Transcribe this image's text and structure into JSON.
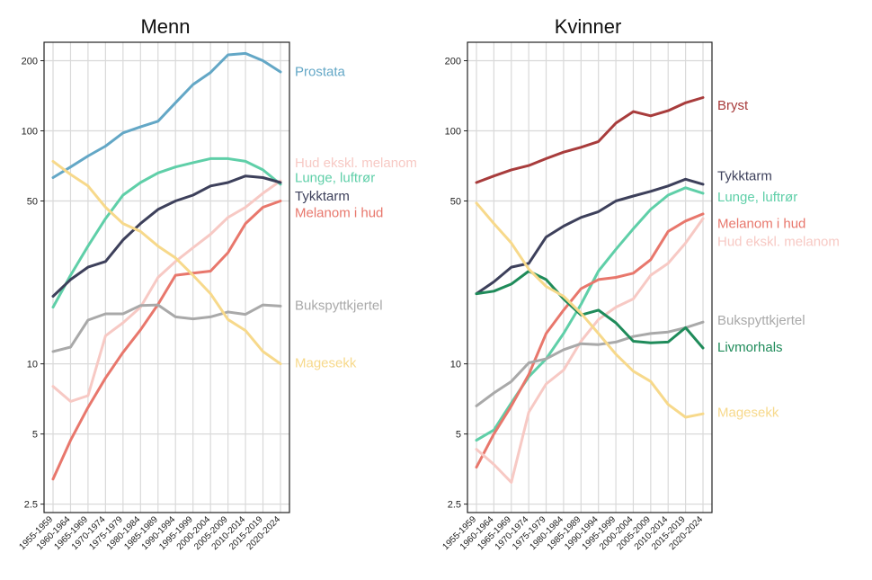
{
  "chart_data": [
    {
      "type": "line",
      "title": "Menn",
      "yscale": "log",
      "ylim": [
        2.3,
        240
      ],
      "yticks": [
        "2.5",
        "5",
        "10",
        "50",
        "100",
        "200"
      ],
      "categories": [
        "1955-1959",
        "1960-1964",
        "1965-1969",
        "1970-1974",
        "1975-1979",
        "1980-1984",
        "1985-1989",
        "1990-1994",
        "1995-1999",
        "2000-2004",
        "2005-2009",
        "2010-2014",
        "2015-2019",
        "2020-2024"
      ],
      "series": [
        {
          "name": "Prostata",
          "color": "#63a7c6",
          "label_value": 180,
          "values": [
            63,
            70,
            78,
            86,
            98,
            104,
            110,
            132,
            158,
            178,
            212,
            215,
            200,
            179
          ]
        },
        {
          "name": "Hud ekskl. melanom",
          "color": "#f7c9c4",
          "label_value": 73,
          "values": [
            8.0,
            6.9,
            7.3,
            13.2,
            15,
            17.5,
            23.5,
            27.5,
            31.5,
            36,
            42.5,
            47,
            54,
            61
          ]
        },
        {
          "name": "Lunge, luftrør",
          "color": "#5fcfa8",
          "label_value": 63,
          "values": [
            17.5,
            24,
            32,
            42,
            53,
            60,
            66,
            70,
            73,
            76,
            76,
            74,
            68,
            59
          ]
        },
        {
          "name": "Tykktarm",
          "color": "#3d405b",
          "label_value": 52.5,
          "values": [
            19.5,
            23,
            26,
            27.5,
            34,
            40,
            46,
            50,
            53,
            58,
            60,
            64,
            63,
            60
          ]
        },
        {
          "name": "Melanom i hud",
          "color": "#e8776c",
          "label_value": 44.5,
          "values": [
            3.2,
            4.7,
            6.5,
            8.7,
            11.2,
            14,
            18,
            24,
            24.5,
            25,
            30,
            40,
            47,
            50
          ]
        },
        {
          "name": "Bukspyttkjertel",
          "color": "#a9a9a9",
          "label_value": 17.8,
          "values": [
            11.3,
            11.8,
            15.4,
            16.4,
            16.4,
            17.8,
            17.9,
            15.9,
            15.6,
            15.9,
            16.7,
            16.3,
            17.9,
            17.7
          ]
        },
        {
          "name": "Magesekk",
          "color": "#f7d98b",
          "label_value": 10.1,
          "values": [
            74,
            65,
            58,
            47,
            40,
            37,
            32,
            28.5,
            24,
            20,
            15.5,
            13.9,
            11.3,
            10
          ]
        }
      ]
    },
    {
      "type": "line",
      "title": "Kvinner",
      "yscale": "log",
      "ylim": [
        2.3,
        240
      ],
      "yticks": [
        "2.5",
        "5",
        "10",
        "50",
        "100",
        "200"
      ],
      "categories": [
        "1955-1959",
        "1960-1964",
        "1965-1969",
        "1970-1974",
        "1975-1979",
        "1980-1984",
        "1985-1989",
        "1990-1994",
        "1995-1999",
        "2000-2004",
        "2005-2009",
        "2010-2014",
        "2015-2019",
        "2020-2024"
      ],
      "series": [
        {
          "name": "Bryst",
          "color": "#a83c3c",
          "label_value": 129,
          "values": [
            60,
            64,
            68,
            71,
            76,
            81,
            85,
            90,
            108,
            121,
            116,
            122,
            132,
            139
          ]
        },
        {
          "name": "Tykktarm",
          "color": "#3d405b",
          "label_value": 64,
          "values": [
            20,
            22.5,
            26,
            27,
            35,
            39,
            42.5,
            45,
            50,
            52.5,
            55,
            58,
            62,
            59
          ]
        },
        {
          "name": "Lunge, luftrør",
          "color": "#5fcfa8",
          "label_value": 52,
          "values": [
            4.7,
            5.2,
            6.8,
            8.8,
            10.5,
            13.5,
            18,
            25,
            31,
            38,
            46,
            53,
            57,
            54
          ]
        },
        {
          "name": "Melanom i hud",
          "color": "#e8776c",
          "label_value": 40,
          "values": [
            3.6,
            5,
            6.6,
            9,
            13.5,
            17,
            21,
            23,
            23.5,
            24.5,
            28,
            37,
            41,
            44
          ]
        },
        {
          "name": "Hud ekskl. melanom",
          "color": "#f7c9c4",
          "label_value": 33.5,
          "values": [
            4.3,
            3.7,
            3.1,
            6.2,
            8.2,
            9.4,
            12.5,
            15.5,
            17.5,
            19,
            24,
            27,
            33,
            42
          ]
        },
        {
          "name": "Bukspyttkjertel",
          "color": "#a9a9a9",
          "label_value": 15.4,
          "values": [
            6.6,
            7.5,
            8.4,
            10.1,
            10.5,
            11.5,
            12.2,
            12.1,
            12.4,
            13.1,
            13.5,
            13.7,
            14.3,
            15.1
          ]
        },
        {
          "name": "Livmorhals",
          "color": "#1f8b5a",
          "label_value": 11.8,
          "values": [
            20,
            20.5,
            22,
            25,
            23,
            19,
            16.2,
            17,
            15,
            12.5,
            12.3,
            12.4,
            14.3,
            11.7
          ]
        },
        {
          "name": "Magesekk",
          "color": "#f7d98b",
          "label_value": 6.2,
          "values": [
            49,
            40,
            33,
            25.5,
            21.5,
            19.5,
            16.5,
            13.5,
            11,
            9.3,
            8.4,
            6.7,
            5.9,
            6.1
          ]
        }
      ]
    }
  ]
}
